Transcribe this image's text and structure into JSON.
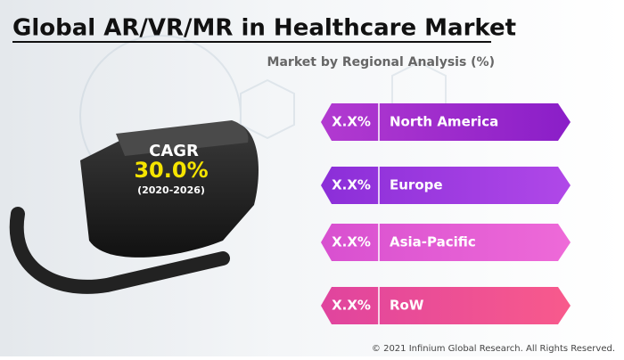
{
  "header": {
    "title": "Global AR/VR/MR in Healthcare Market",
    "subtitle": "Market by Regional Analysis (%)"
  },
  "headset": {
    "label": "CAGR",
    "value": "30.0%",
    "period": "(2020-2026)"
  },
  "regions": [
    {
      "value": "X.X%",
      "label": "North America"
    },
    {
      "value": "X.X%",
      "label": "Europe"
    },
    {
      "value": "X.X%",
      "label": "Asia-Pacific"
    },
    {
      "value": "X.X%",
      "label": "RoW"
    }
  ],
  "footer": "© 2021 Infinium Global Research. All Rights Reserved."
}
